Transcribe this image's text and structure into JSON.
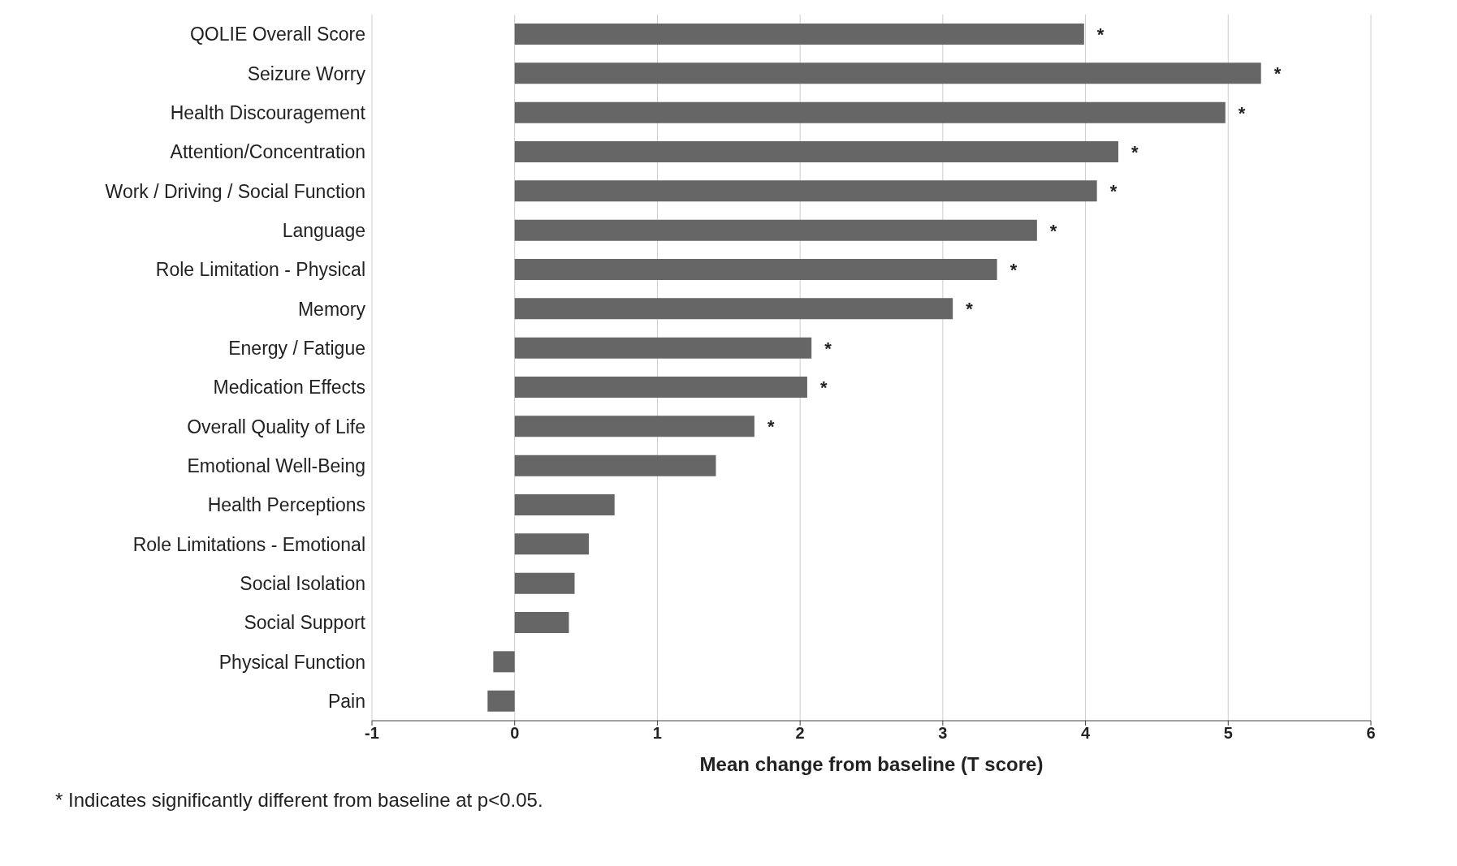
{
  "chart_data": {
    "type": "bar",
    "orientation": "horizontal",
    "xlabel": "Mean change from baseline (T score)",
    "categories": [
      "QOLIE Overall Score",
      "Seizure Worry",
      "Health Discouragement",
      "Attention/Concentration",
      "Work / Driving / Social Function",
      "Language",
      "Role Limitation - Physical",
      "Memory",
      "Energy / Fatigue",
      "Medication Effects",
      "Overall Quality of Life",
      "Emotional Well-Being",
      "Health Perceptions",
      "Role Limitations - Emotional",
      "Social Isolation",
      "Social Support",
      "Physical Function",
      "Pain"
    ],
    "values": [
      3.99,
      5.23,
      4.98,
      4.23,
      4.08,
      3.66,
      3.38,
      3.07,
      2.08,
      2.05,
      1.68,
      1.41,
      0.7,
      0.52,
      0.42,
      0.38,
      -0.15,
      -0.19
    ],
    "color": "#666666",
    "xlim": [
      -1,
      6
    ],
    "xticks": [
      -1,
      0,
      1,
      2,
      3,
      4,
      5,
      6
    ],
    "grid": "x",
    "legend": false,
    "annotations": [
      {
        "text": "*",
        "x": 3.99,
        "y": "QOLIE Overall Score"
      },
      {
        "text": "*",
        "x": 5.23,
        "y": "Seizure Worry"
      },
      {
        "text": "*",
        "x": 4.98,
        "y": "Health Discouragement"
      },
      {
        "text": "*",
        "x": 4.23,
        "y": "Attention/Concentration"
      },
      {
        "text": "*",
        "x": 4.08,
        "y": "Work / Driving / Social Function"
      },
      {
        "text": "*",
        "x": 3.66,
        "y": "Language"
      },
      {
        "text": "*",
        "x": 3.38,
        "y": "Role Limitation - Physical"
      },
      {
        "text": "*",
        "x": 3.07,
        "y": "Memory"
      },
      {
        "text": "*",
        "x": 2.08,
        "y": "Energy / Fatigue"
      },
      {
        "text": "*",
        "x": 2.05,
        "y": "Medication Effects"
      },
      {
        "text": "*",
        "x": 1.68,
        "y": "Overall Quality of Life"
      },
      "* Indicates significantly different from baseline at p<0.05."
    ]
  }
}
